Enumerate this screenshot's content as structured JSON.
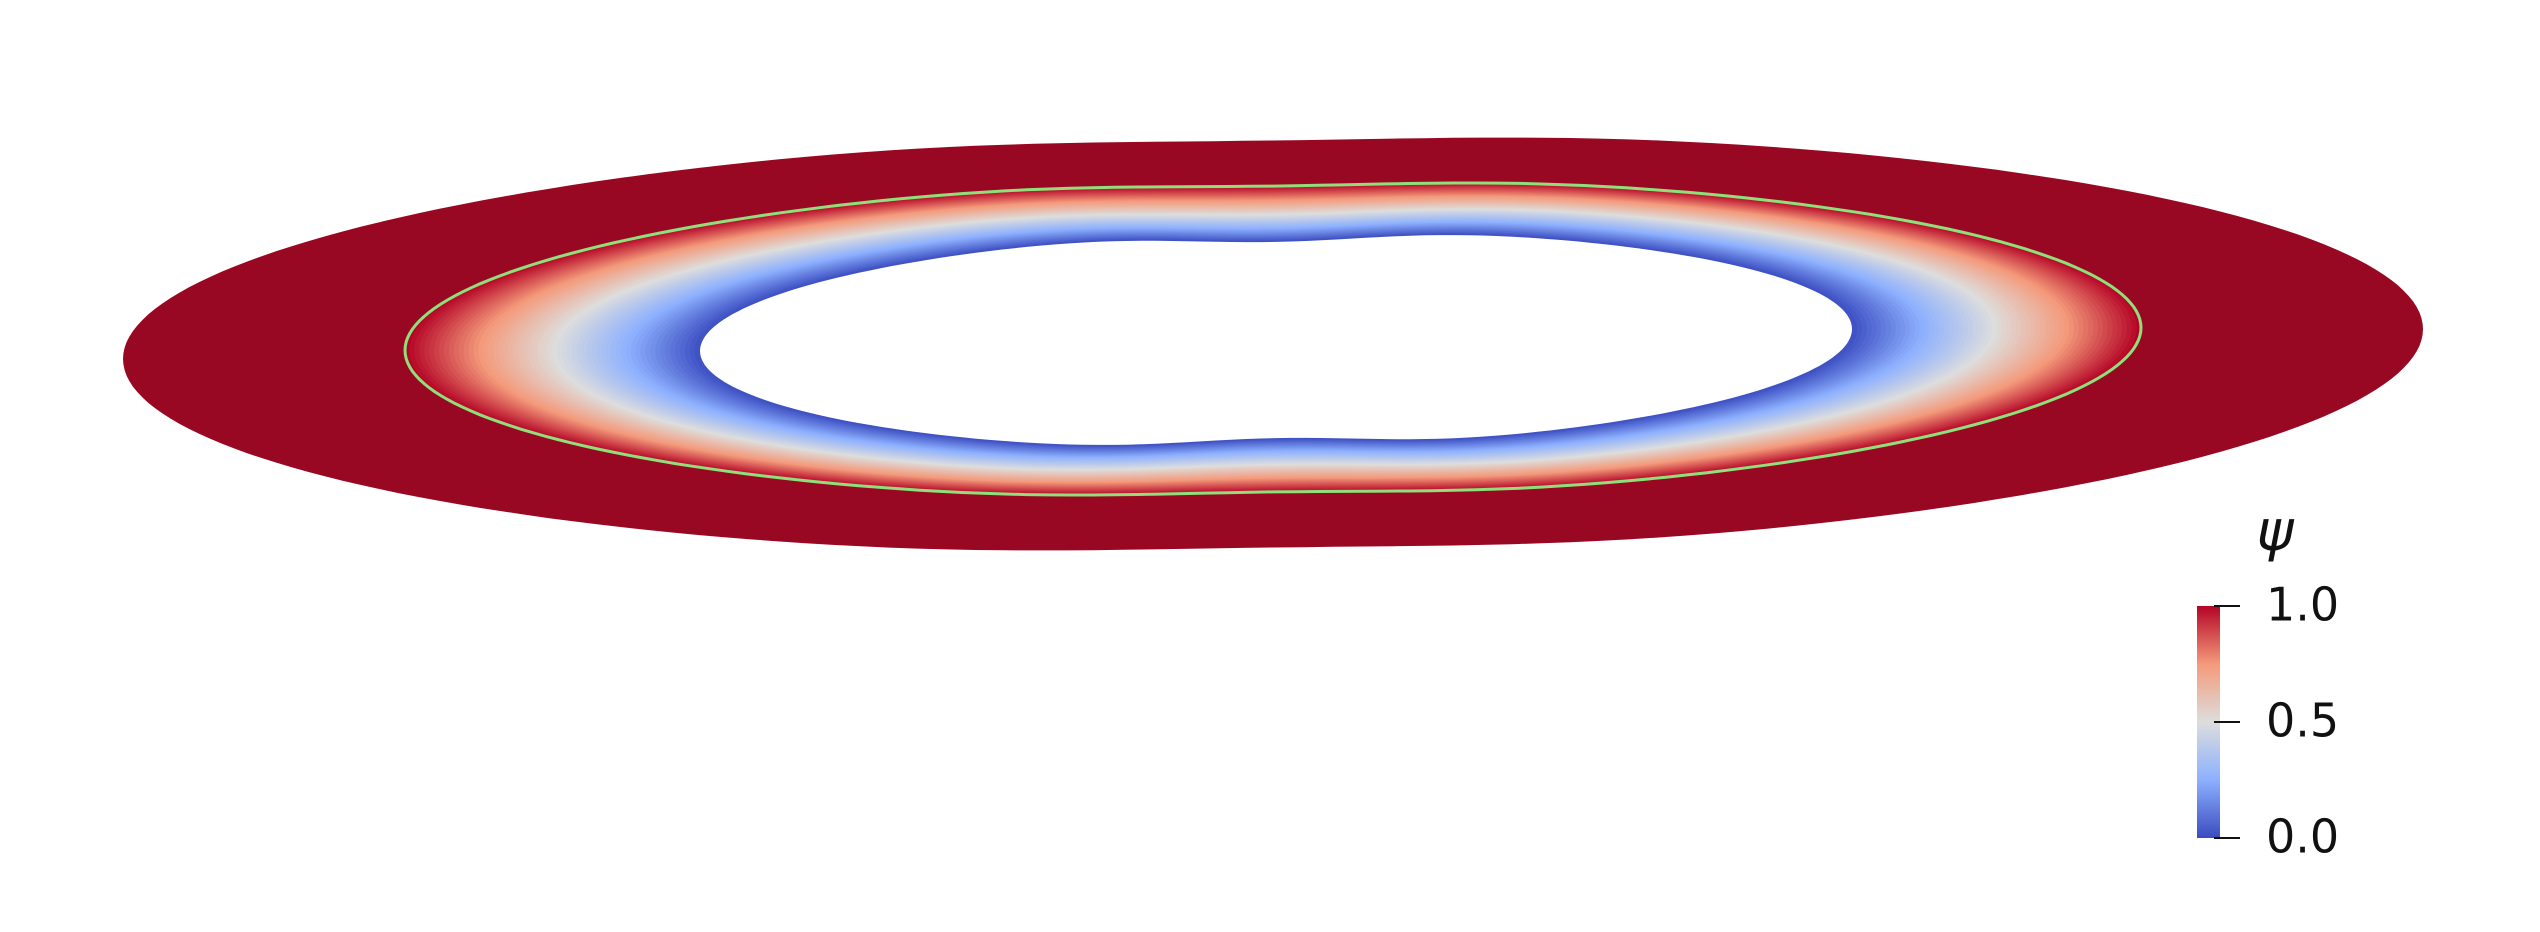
{
  "colorbar": {
    "title": "ψ",
    "ticks": [
      {
        "value": 0,
        "label": "0.0"
      },
      {
        "value": 0.5,
        "label": "0.5"
      },
      {
        "value": 1,
        "label": "1.0"
      }
    ]
  }
}
